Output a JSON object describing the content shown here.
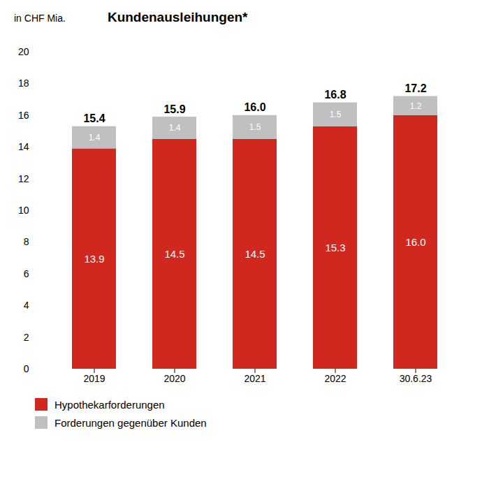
{
  "chart_data": {
    "type": "bar",
    "stacked": true,
    "title": "Kundenausleihungen*",
    "subtitle": "in CHF Mia.",
    "categories": [
      "2019",
      "2020",
      "2021",
      "2022",
      "30.6.23"
    ],
    "series": [
      {
        "name": "Hypothekarforderungen",
        "color": "#D0281E",
        "values": [
          13.9,
          14.5,
          14.5,
          15.3,
          16.0
        ],
        "value_labels": [
          "13.9",
          "14.5",
          "14.5",
          "15.3",
          "16.0"
        ]
      },
      {
        "name": "Forderungen gegenüber Kunden",
        "color": "#C0C0C0",
        "values": [
          1.4,
          1.4,
          1.5,
          1.5,
          1.2
        ],
        "value_labels": [
          "1.4",
          "1.4",
          "1.5",
          "1.5",
          "1.2"
        ]
      }
    ],
    "totals": [
      15.4,
      15.9,
      16.0,
      16.8,
      17.2
    ],
    "total_labels": [
      "15.4",
      "15.9",
      "16.0",
      "16.8",
      "17.2"
    ],
    "data_labels": true,
    "ylim": [
      0,
      20
    ],
    "yticks": [
      0,
      2,
      4,
      6,
      8,
      10,
      12,
      14,
      16,
      18,
      20
    ],
    "grid": false,
    "legend": "bottom"
  }
}
